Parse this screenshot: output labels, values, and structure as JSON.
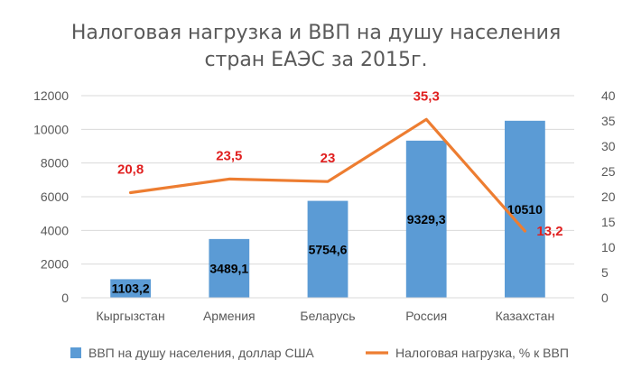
{
  "chart_data": {
    "type": "bar",
    "title_line1": "Налоговая нагрузка и ВВП на душу населения",
    "title_line2": "стран ЕАЭС за 2015г.",
    "categories": [
      "Кыргызстан",
      "Армения",
      "Беларусь",
      "Россия",
      "Казахстан"
    ],
    "series": [
      {
        "name": "ВВП на душу населения, доллар США",
        "type": "bar",
        "axis": "left",
        "values": [
          1103.2,
          3489.1,
          5754.6,
          9329.3,
          10510
        ],
        "labels": [
          "1103,2",
          "3489,1",
          "5754,6",
          "9329,3",
          "10510"
        ],
        "color": "#5B9BD5"
      },
      {
        "name": "Налоговая нагрузка, % к ВВП",
        "type": "line",
        "axis": "right",
        "values": [
          20.8,
          23.5,
          23,
          35.3,
          13.2
        ],
        "labels": [
          "20,8",
          "23,5",
          "23",
          "35,3",
          "13,2"
        ],
        "color": "#ED7D31",
        "label_color": "#E02020"
      }
    ],
    "y_left": {
      "min": 0,
      "max": 12000,
      "ticks": [
        0,
        2000,
        4000,
        6000,
        8000,
        10000,
        12000
      ]
    },
    "y_right": {
      "min": 0,
      "max": 40,
      "ticks": [
        0,
        5,
        10,
        15,
        20,
        25,
        30,
        35,
        40
      ]
    },
    "grid": true,
    "legend_position": "bottom"
  }
}
